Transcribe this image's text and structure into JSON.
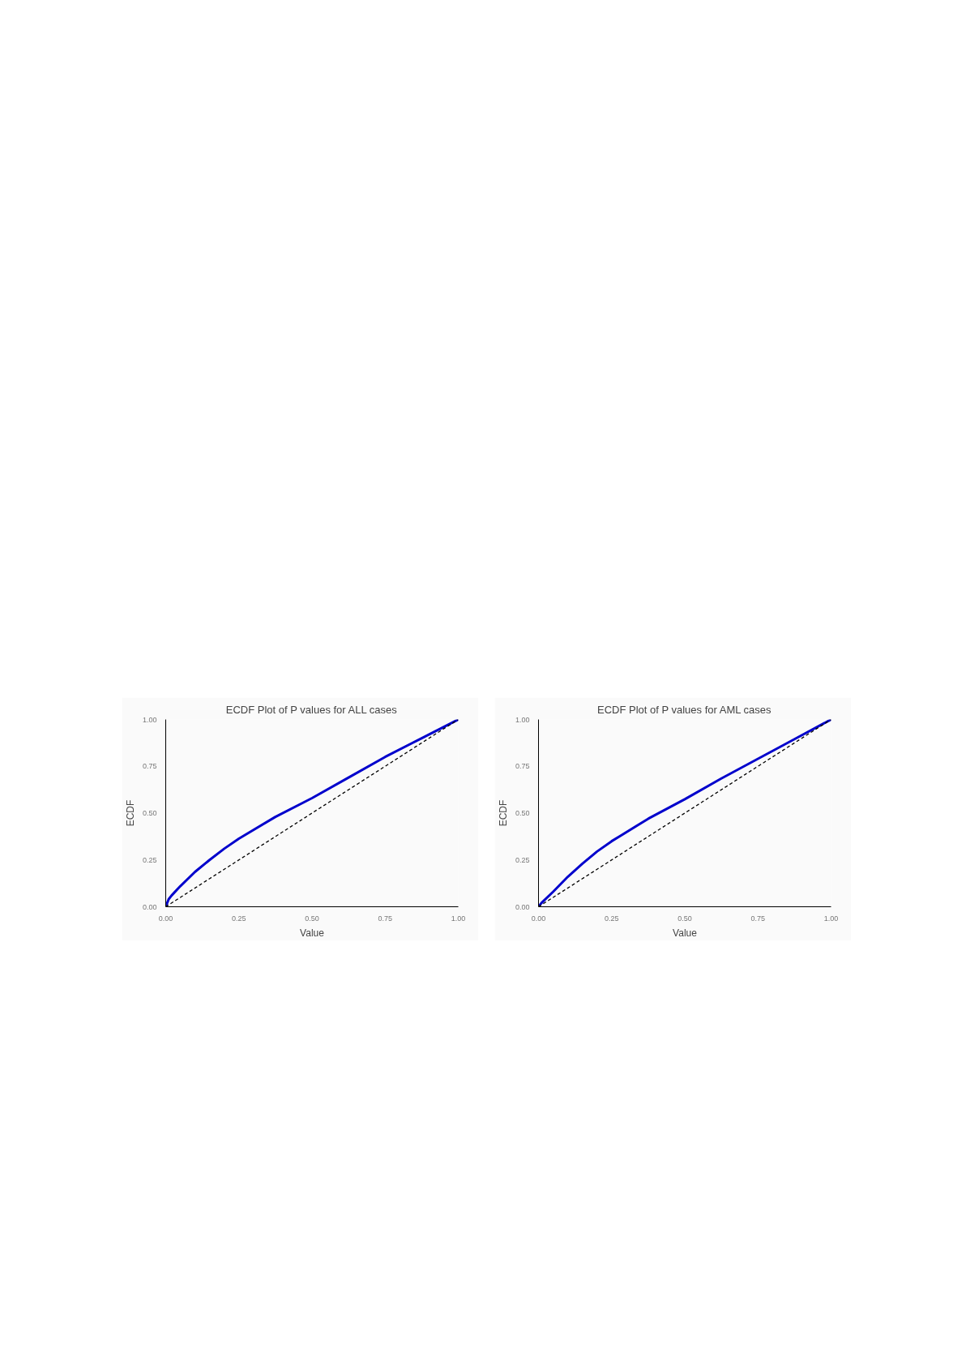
{
  "chart_data": [
    {
      "type": "line",
      "title": "ECDF Plot of P values for ALL cases",
      "xlabel": "Value",
      "ylabel": "ECDF",
      "xlim": [
        0,
        1
      ],
      "ylim": [
        0,
        1
      ],
      "xticks": [
        {
          "value": 0,
          "label": "0.00"
        },
        {
          "value": 0.25,
          "label": "0.25"
        },
        {
          "value": 0.5,
          "label": "0.50"
        },
        {
          "value": 0.75,
          "label": "0.75"
        },
        {
          "value": 1,
          "label": "1.00"
        }
      ],
      "yticks": [
        {
          "value": 0,
          "label": "0.00"
        },
        {
          "value": 0.25,
          "label": "0.25"
        },
        {
          "value": 0.5,
          "label": "0.50"
        },
        {
          "value": 0.75,
          "label": "0.75"
        },
        {
          "value": 1,
          "label": "1.00"
        }
      ],
      "grid": false,
      "series": [
        {
          "color": "#0000cc",
          "line_style": "solid",
          "x": [
            0,
            0.01,
            0.02,
            0.05,
            0.1,
            0.15,
            0.2,
            0.25,
            0.375,
            0.5,
            0.625,
            0.75,
            0.875,
            1
          ],
          "values": [
            0,
            0.04,
            0.06,
            0.11,
            0.186,
            0.25,
            0.31,
            0.364,
            0.48,
            0.58,
            0.69,
            0.8,
            0.9,
            1
          ]
        },
        {
          "color": "#000000",
          "line_style": "dashed",
          "x": [
            0,
            1
          ],
          "values": [
            0,
            1
          ]
        }
      ]
    },
    {
      "type": "line",
      "title": "ECDF Plot of P values for AML cases",
      "xlabel": "Value",
      "ylabel": "ECDF",
      "xlim": [
        0,
        1
      ],
      "ylim": [
        0,
        1
      ],
      "xticks": [
        {
          "value": 0,
          "label": "0.00"
        },
        {
          "value": 0.25,
          "label": "0.25"
        },
        {
          "value": 0.5,
          "label": "0.50"
        },
        {
          "value": 0.75,
          "label": "0.75"
        },
        {
          "value": 1,
          "label": "1.00"
        }
      ],
      "yticks": [
        {
          "value": 0,
          "label": "0.00"
        },
        {
          "value": 0.25,
          "label": "0.25"
        },
        {
          "value": 0.5,
          "label": "0.50"
        },
        {
          "value": 0.75,
          "label": "0.75"
        },
        {
          "value": 1,
          "label": "1.00"
        }
      ],
      "grid": false,
      "series": [
        {
          "color": "#0000cc",
          "line_style": "solid",
          "x": [
            0,
            0.01,
            0.02,
            0.05,
            0.1,
            0.15,
            0.2,
            0.25,
            0.375,
            0.5,
            0.625,
            0.75,
            0.875,
            1
          ],
          "values": [
            0,
            0.02,
            0.035,
            0.08,
            0.16,
            0.23,
            0.295,
            0.35,
            0.47,
            0.574,
            0.685,
            0.79,
            0.895,
            1
          ]
        },
        {
          "color": "#000000",
          "line_style": "dashed",
          "x": [
            0,
            1
          ],
          "values": [
            0,
            1
          ]
        }
      ]
    }
  ]
}
